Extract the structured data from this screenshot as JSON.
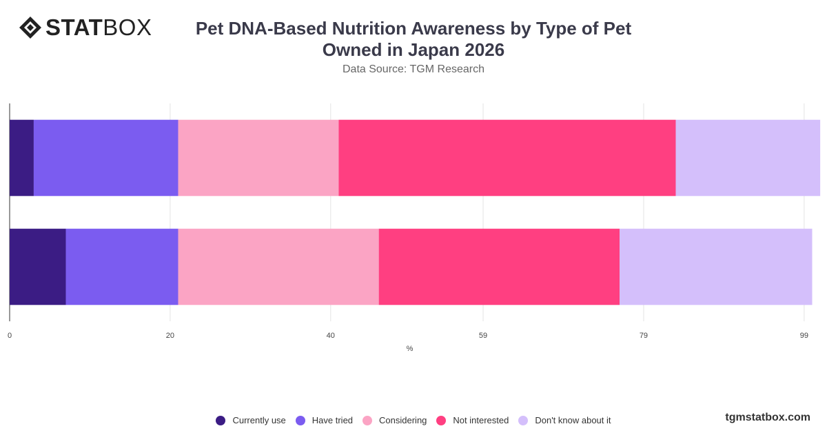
{
  "brand": {
    "logo_bold": "STAT",
    "logo_light": "BOX",
    "url": "tgmstatbox.com"
  },
  "header": {
    "title": "Pet DNA-Based Nutrition Awareness by Type of Pet Owned in Japan 2026",
    "subtitle": "Data Source: TGM Research"
  },
  "chart_data": {
    "type": "bar",
    "orientation": "horizontal",
    "stacked": true,
    "title": "Pet DNA-Based Nutrition Awareness by Type of Pet Owned in Japan 2026",
    "subtitle": "Data Source: TGM Research",
    "xlabel": "%",
    "ylabel": "",
    "x_ticks": [
      "0",
      "20",
      "40",
      "59",
      "79",
      "99"
    ],
    "xlim": [
      0,
      99.7
    ],
    "grid": true,
    "legend_position": "bottom",
    "categories": [
      "",
      ""
    ],
    "series": [
      {
        "name": "Currently use",
        "color": "#3b1c84",
        "values": [
          3,
          7
        ]
      },
      {
        "name": "Have tried",
        "color": "#7b5cf0",
        "values": [
          18,
          14
        ]
      },
      {
        "name": "Considering",
        "color": "#fba4c4",
        "values": [
          20,
          25
        ]
      },
      {
        "name": "Not interested",
        "color": "#ff3f81",
        "values": [
          42,
          30
        ]
      },
      {
        "name": "Don't know about it",
        "color": "#d4bffb",
        "values": [
          18,
          24
        ]
      }
    ]
  }
}
